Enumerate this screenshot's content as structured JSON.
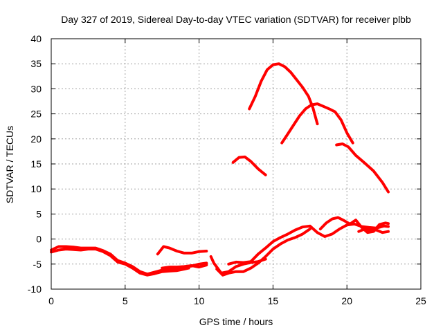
{
  "chart_data": {
    "type": "line",
    "title": "Day 327 of 2019, Sidereal Day-to-day VTEC variation (SDTVAR) for receiver plbb",
    "xlabel": "GPS time / hours",
    "ylabel": "SDTVAR / TECUs",
    "xlim": [
      0,
      25
    ],
    "ylim": [
      -10,
      40
    ],
    "xticks": [
      0,
      5,
      10,
      15,
      20,
      25
    ],
    "yticks": [
      -10,
      -5,
      0,
      5,
      10,
      15,
      20,
      25,
      30,
      35,
      40
    ],
    "grid": true,
    "color": "#ff0000",
    "series": [
      {
        "name": "arc-1",
        "points": [
          [
            0,
            -2.2
          ],
          [
            0.5,
            -1.5
          ],
          [
            1,
            -1.5
          ],
          [
            1.5,
            -1.6
          ],
          [
            2,
            -1.8
          ],
          [
            2.5,
            -1.8
          ],
          [
            3,
            -1.8
          ],
          [
            3.5,
            -2.3
          ],
          [
            4,
            -3
          ],
          [
            4.5,
            -4.3
          ],
          [
            5,
            -4.8
          ],
          [
            5.5,
            -5.5
          ],
          [
            6,
            -6.5
          ],
          [
            6.5,
            -7
          ],
          [
            7,
            -6.6
          ],
          [
            7.5,
            -6.2
          ],
          [
            8,
            -6
          ],
          [
            8.5,
            -5.8
          ],
          [
            9,
            -5.6
          ],
          [
            9.5,
            -5.4
          ],
          [
            10,
            -5
          ],
          [
            10.5,
            -4.8
          ]
        ]
      },
      {
        "name": "arc-2",
        "points": [
          [
            0,
            -2.6
          ],
          [
            0.5,
            -2.2
          ],
          [
            1,
            -2
          ],
          [
            1.5,
            -2.1
          ],
          [
            2,
            -2.2
          ],
          [
            2.5,
            -2
          ],
          [
            3,
            -2
          ],
          [
            3.5,
            -2.5
          ],
          [
            4,
            -3.3
          ],
          [
            4.5,
            -4.6
          ],
          [
            5,
            -5
          ],
          [
            5.5,
            -5.8
          ],
          [
            6,
            -6.8
          ],
          [
            6.5,
            -7.2
          ],
          [
            7,
            -6.9
          ],
          [
            7.5,
            -6.5
          ],
          [
            8,
            -6.4
          ],
          [
            8.5,
            -6.3
          ],
          [
            9,
            -6
          ],
          [
            9.3,
            -5.8
          ]
        ]
      },
      {
        "name": "arc-3",
        "points": [
          [
            7.2,
            -3
          ],
          [
            7.6,
            -1.5
          ],
          [
            8,
            -1.8
          ],
          [
            8.5,
            -2.4
          ],
          [
            9,
            -2.8
          ],
          [
            9.5,
            -2.8
          ],
          [
            10,
            -2.5
          ],
          [
            10.5,
            -2.4
          ]
        ]
      },
      {
        "name": "arc-4",
        "points": [
          [
            7.5,
            -5.8
          ],
          [
            8,
            -5.6
          ],
          [
            8.5,
            -5.6
          ],
          [
            9,
            -5.5
          ],
          [
            9.5,
            -5.3
          ],
          [
            10,
            -5.6
          ],
          [
            10.5,
            -5.2
          ]
        ]
      },
      {
        "name": "arc-5",
        "points": [
          [
            10.8,
            -3.5
          ],
          [
            11,
            -4.8
          ],
          [
            11.5,
            -6.8
          ],
          [
            12,
            -6.5
          ],
          [
            12.5,
            -5.5
          ],
          [
            13,
            -5
          ],
          [
            13.5,
            -4.7
          ],
          [
            14,
            -4.5
          ],
          [
            14.5,
            -4
          ]
        ]
      },
      {
        "name": "arc-6",
        "points": [
          [
            11.2,
            -6
          ],
          [
            11.6,
            -7.2
          ],
          [
            12,
            -6.8
          ],
          [
            12.5,
            -6.5
          ],
          [
            13,
            -6.5
          ],
          [
            13.5,
            -5.8
          ],
          [
            14,
            -4.8
          ],
          [
            14.5,
            -3.5
          ],
          [
            15,
            -2
          ],
          [
            15.5,
            -1
          ],
          [
            16,
            -0.2
          ],
          [
            16.5,
            0.3
          ],
          [
            17,
            1
          ],
          [
            17.5,
            2
          ]
        ]
      },
      {
        "name": "arc-7",
        "points": [
          [
            12,
            -5
          ],
          [
            12.5,
            -4.6
          ],
          [
            13,
            -4.7
          ],
          [
            13.5,
            -4.5
          ],
          [
            14,
            -3
          ],
          [
            14.5,
            -1.8
          ],
          [
            15,
            -0.5
          ],
          [
            15.5,
            0.3
          ],
          [
            16,
            1
          ],
          [
            16.5,
            1.8
          ],
          [
            17,
            2.4
          ],
          [
            17.5,
            2.6
          ],
          [
            18,
            1.3
          ],
          [
            18.5,
            0.5
          ],
          [
            19,
            1
          ],
          [
            19.5,
            2
          ],
          [
            20,
            2.8
          ],
          [
            20.5,
            3
          ],
          [
            21,
            2.5
          ],
          [
            21.5,
            2.3
          ],
          [
            22,
            2.2
          ],
          [
            22.5,
            2.6
          ],
          [
            22.8,
            2.5
          ]
        ]
      },
      {
        "name": "arc-8",
        "points": [
          [
            18.2,
            2
          ],
          [
            18.6,
            3.2
          ],
          [
            19,
            4
          ],
          [
            19.4,
            4.3
          ],
          [
            19.8,
            3.7
          ],
          [
            20.2,
            3
          ],
          [
            20.6,
            3.8
          ],
          [
            21,
            2.3
          ],
          [
            21.4,
            1.3
          ],
          [
            21.8,
            1.5
          ],
          [
            22.2,
            2.9
          ],
          [
            22.6,
            3.2
          ],
          [
            22.8,
            3.1
          ]
        ]
      },
      {
        "name": "arc-9",
        "points": [
          [
            20.8,
            1.5
          ],
          [
            21.2,
            2
          ],
          [
            21.6,
            1.8
          ],
          [
            22,
            1.8
          ],
          [
            22.4,
            1.3
          ],
          [
            22.8,
            1.5
          ]
        ]
      },
      {
        "name": "arc-10",
        "points": [
          [
            12.3,
            15.3
          ],
          [
            12.7,
            16.3
          ],
          [
            13.1,
            16.4
          ],
          [
            13.5,
            15.5
          ],
          [
            14,
            14
          ],
          [
            14.5,
            12.8
          ]
        ]
      },
      {
        "name": "arc-11",
        "points": [
          [
            13.4,
            26
          ],
          [
            13.8,
            28.5
          ],
          [
            14.2,
            31.5
          ],
          [
            14.6,
            33.8
          ],
          [
            15,
            34.8
          ],
          [
            15.4,
            35
          ],
          [
            15.8,
            34.4
          ],
          [
            16.2,
            33.3
          ],
          [
            16.6,
            31.8
          ],
          [
            17,
            30.3
          ],
          [
            17.4,
            28.5
          ],
          [
            17.7,
            26.2
          ],
          [
            18,
            23
          ]
        ]
      },
      {
        "name": "arc-12",
        "points": [
          [
            15.6,
            19.2
          ],
          [
            16,
            21
          ],
          [
            16.4,
            22.8
          ],
          [
            16.8,
            24.6
          ],
          [
            17.2,
            26
          ],
          [
            17.6,
            26.8
          ],
          [
            18,
            27
          ],
          [
            18.4,
            26.5
          ],
          [
            18.8,
            26
          ],
          [
            19.2,
            25.4
          ],
          [
            19.6,
            23.8
          ],
          [
            20,
            21.2
          ],
          [
            20.4,
            19.2
          ]
        ]
      },
      {
        "name": "arc-13",
        "points": [
          [
            19.3,
            18.8
          ],
          [
            19.7,
            19
          ],
          [
            20.1,
            18.4
          ],
          [
            20.6,
            16.7
          ],
          [
            21.2,
            15.2
          ],
          [
            21.8,
            13.6
          ],
          [
            22.4,
            11.3
          ],
          [
            22.8,
            9.4
          ]
        ]
      }
    ]
  }
}
